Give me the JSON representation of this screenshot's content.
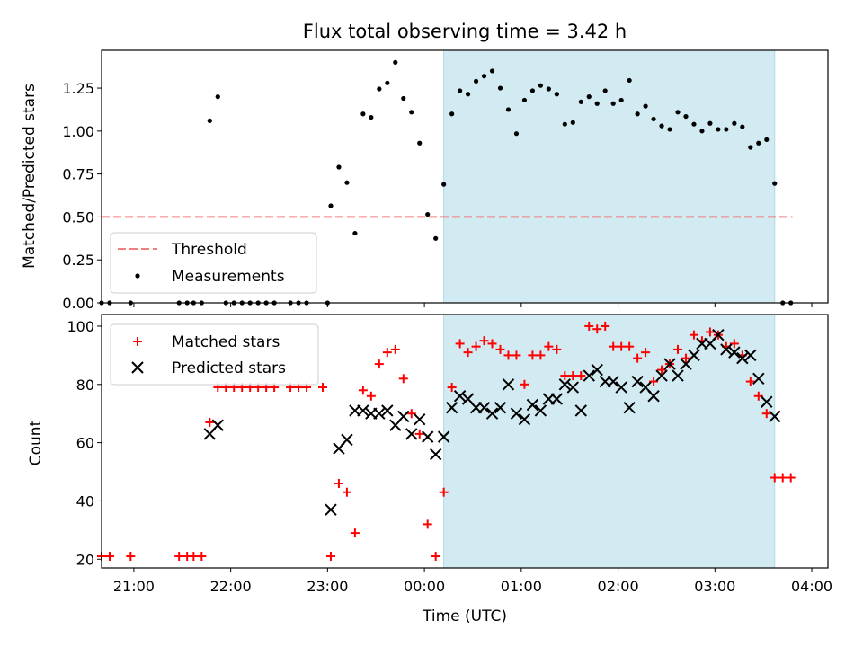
{
  "chart_data": [
    {
      "type": "scatter",
      "title": "Flux total observing time = 3.42 h",
      "ylabel": "Matched/Predicted stars",
      "ylim": [
        0,
        1.47
      ],
      "yticks": [
        0.0,
        0.25,
        0.5,
        0.75,
        1.0,
        1.25
      ],
      "ytick_labels": [
        "0.00",
        "0.25",
        "0.50",
        "0.75",
        "1.00",
        "1.25"
      ],
      "xlim": [
        "20:40",
        "04:10"
      ],
      "highlight_span": [
        "00:12",
        "03:37"
      ],
      "highlight_color": "#add8e6",
      "threshold": {
        "name": "Threshold",
        "value": 0.5,
        "x_range": [
          "20:40",
          "03:48"
        ],
        "color": "#f08080"
      },
      "legend": {
        "position": "lower-left",
        "entries": [
          "Threshold",
          "Measurements"
        ]
      },
      "series": [
        {
          "name": "Measurements",
          "color": "#000000",
          "points": [
            [
              "20:40",
              0
            ],
            [
              "20:45",
              0
            ],
            [
              "20:58",
              0
            ],
            [
              "21:28",
              0
            ],
            [
              "21:33",
              0
            ],
            [
              "21:37",
              0
            ],
            [
              "21:42",
              0
            ],
            [
              "21:47",
              1.06
            ],
            [
              "21:52",
              1.2
            ],
            [
              "21:57",
              0
            ],
            [
              "22:02",
              0
            ],
            [
              "22:07",
              0
            ],
            [
              "22:12",
              0
            ],
            [
              "22:17",
              0
            ],
            [
              "22:22",
              0
            ],
            [
              "22:27",
              0
            ],
            [
              "22:37",
              0
            ],
            [
              "22:42",
              0
            ],
            [
              "22:47",
              0
            ],
            [
              "23:00",
              0
            ],
            [
              "23:02",
              0.565
            ],
            [
              "23:07",
              0.79
            ],
            [
              "23:12",
              0.7
            ],
            [
              "23:17",
              0.405
            ],
            [
              "23:22",
              1.1
            ],
            [
              "23:27",
              1.08
            ],
            [
              "23:32",
              1.245
            ],
            [
              "23:37",
              1.28
            ],
            [
              "23:42",
              1.4
            ],
            [
              "23:47",
              1.19
            ],
            [
              "23:52",
              1.11
            ],
            [
              "23:57",
              0.93
            ],
            [
              "00:02",
              0.515
            ],
            [
              "00:07",
              0.375
            ],
            [
              "00:12",
              0.69
            ],
            [
              "00:17",
              1.1
            ],
            [
              "00:22",
              1.235
            ],
            [
              "00:27",
              1.215
            ],
            [
              "00:32",
              1.29
            ],
            [
              "00:37",
              1.32
            ],
            [
              "00:42",
              1.35
            ],
            [
              "00:47",
              1.25
            ],
            [
              "00:52",
              1.125
            ],
            [
              "00:57",
              0.985
            ],
            [
              "01:02",
              1.18
            ],
            [
              "01:07",
              1.235
            ],
            [
              "01:12",
              1.265
            ],
            [
              "01:17",
              1.245
            ],
            [
              "01:22",
              1.215
            ],
            [
              "01:27",
              1.04
            ],
            [
              "01:32",
              1.05
            ],
            [
              "01:37",
              1.17
            ],
            [
              "01:42",
              1.2
            ],
            [
              "01:47",
              1.16
            ],
            [
              "01:52",
              1.235
            ],
            [
              "01:57",
              1.16
            ],
            [
              "02:02",
              1.18
            ],
            [
              "02:07",
              1.295
            ],
            [
              "02:12",
              1.1
            ],
            [
              "02:17",
              1.145
            ],
            [
              "02:22",
              1.07
            ],
            [
              "02:27",
              1.03
            ],
            [
              "02:32",
              1.01
            ],
            [
              "02:37",
              1.11
            ],
            [
              "02:42",
              1.085
            ],
            [
              "02:47",
              1.04
            ],
            [
              "02:52",
              1.0
            ],
            [
              "02:57",
              1.045
            ],
            [
              "03:02",
              1.01
            ],
            [
              "03:07",
              1.01
            ],
            [
              "03:12",
              1.045
            ],
            [
              "03:17",
              1.025
            ],
            [
              "03:22",
              0.905
            ],
            [
              "03:27",
              0.93
            ],
            [
              "03:32",
              0.95
            ],
            [
              "03:37",
              0.695
            ],
            [
              "03:42",
              0
            ],
            [
              "03:47",
              0
            ]
          ]
        }
      ]
    },
    {
      "type": "scatter",
      "xlabel": "Time (UTC)",
      "ylabel": "Count",
      "ylim": [
        17,
        104
      ],
      "yticks": [
        20,
        40,
        60,
        80,
        100
      ],
      "ytick_labels": [
        "20",
        "40",
        "60",
        "80",
        "100"
      ],
      "xlim": [
        "20:40",
        "04:10"
      ],
      "xticks": [
        "21:00",
        "22:00",
        "23:00",
        "00:00",
        "01:00",
        "02:00",
        "03:00",
        "04:00"
      ],
      "highlight_span": [
        "00:12",
        "03:37"
      ],
      "highlight_color": "#add8e6",
      "legend": {
        "position": "top-left",
        "entries": [
          "Matched stars",
          "Predicted stars"
        ]
      },
      "series": [
        {
          "name": "Matched stars",
          "marker": "plus",
          "color": "#ff0000",
          "points": [
            [
              "20:40",
              21
            ],
            [
              "20:45",
              21
            ],
            [
              "20:58",
              21
            ],
            [
              "21:28",
              21
            ],
            [
              "21:33",
              21
            ],
            [
              "21:37",
              21
            ],
            [
              "21:42",
              21
            ],
            [
              "21:47",
              67
            ],
            [
              "21:52",
              79
            ],
            [
              "21:57",
              79
            ],
            [
              "22:02",
              79
            ],
            [
              "22:07",
              79
            ],
            [
              "22:12",
              79
            ],
            [
              "22:17",
              79
            ],
            [
              "22:22",
              79
            ],
            [
              "22:27",
              79
            ],
            [
              "22:37",
              79
            ],
            [
              "22:42",
              79
            ],
            [
              "22:47",
              79
            ],
            [
              "22:57",
              79
            ],
            [
              "23:02",
              21
            ],
            [
              "23:07",
              46
            ],
            [
              "23:12",
              43
            ],
            [
              "23:17",
              29
            ],
            [
              "23:22",
              78
            ],
            [
              "23:27",
              76
            ],
            [
              "23:32",
              87
            ],
            [
              "23:37",
              91
            ],
            [
              "23:42",
              92
            ],
            [
              "23:47",
              82
            ],
            [
              "23:52",
              70
            ],
            [
              "23:57",
              63
            ],
            [
              "00:02",
              32
            ],
            [
              "00:07",
              21
            ],
            [
              "00:12",
              43
            ],
            [
              "00:17",
              79
            ],
            [
              "00:22",
              94
            ],
            [
              "00:27",
              91
            ],
            [
              "00:32",
              93
            ],
            [
              "00:37",
              95
            ],
            [
              "00:42",
              94
            ],
            [
              "00:47",
              92
            ],
            [
              "00:52",
              90
            ],
            [
              "00:57",
              90
            ],
            [
              "01:02",
              80
            ],
            [
              "01:07",
              90
            ],
            [
              "01:12",
              90
            ],
            [
              "01:17",
              93
            ],
            [
              "01:22",
              92
            ],
            [
              "01:27",
              83
            ],
            [
              "01:32",
              83
            ],
            [
              "01:37",
              83
            ],
            [
              "01:42",
              100
            ],
            [
              "01:47",
              99
            ],
            [
              "01:52",
              100
            ],
            [
              "01:57",
              93
            ],
            [
              "02:02",
              93
            ],
            [
              "02:07",
              93
            ],
            [
              "02:12",
              89
            ],
            [
              "02:17",
              91
            ],
            [
              "02:22",
              81
            ],
            [
              "02:27",
              85
            ],
            [
              "02:32",
              87
            ],
            [
              "02:37",
              92
            ],
            [
              "02:42",
              89
            ],
            [
              "02:47",
              97
            ],
            [
              "02:52",
              95
            ],
            [
              "02:57",
              98
            ],
            [
              "03:02",
              97
            ],
            [
              "03:07",
              93
            ],
            [
              "03:12",
              94
            ],
            [
              "03:17",
              90
            ],
            [
              "03:22",
              81
            ],
            [
              "03:27",
              76
            ],
            [
              "03:32",
              70
            ],
            [
              "03:37",
              48
            ],
            [
              "03:42",
              48
            ],
            [
              "03:47",
              48
            ]
          ]
        },
        {
          "name": "Predicted stars",
          "marker": "x",
          "color": "#000000",
          "points": [
            [
              "21:47",
              63
            ],
            [
              "21:52",
              66
            ],
            [
              "23:02",
              37
            ],
            [
              "23:07",
              58
            ],
            [
              "23:12",
              61
            ],
            [
              "23:17",
              71
            ],
            [
              "23:22",
              71
            ],
            [
              "23:27",
              70
            ],
            [
              "23:32",
              70
            ],
            [
              "23:37",
              71
            ],
            [
              "23:42",
              66
            ],
            [
              "23:47",
              69
            ],
            [
              "23:52",
              63
            ],
            [
              "23:57",
              68
            ],
            [
              "00:02",
              62
            ],
            [
              "00:07",
              56
            ],
            [
              "00:12",
              62
            ],
            [
              "00:17",
              72
            ],
            [
              "00:22",
              76
            ],
            [
              "00:27",
              75
            ],
            [
              "00:32",
              72
            ],
            [
              "00:37",
              72
            ],
            [
              "00:42",
              70
            ],
            [
              "00:47",
              72
            ],
            [
              "00:52",
              80
            ],
            [
              "00:57",
              70
            ],
            [
              "01:02",
              68
            ],
            [
              "01:07",
              73
            ],
            [
              "01:12",
              71
            ],
            [
              "01:17",
              75
            ],
            [
              "01:22",
              75
            ],
            [
              "01:27",
              80
            ],
            [
              "01:32",
              79
            ],
            [
              "01:37",
              71
            ],
            [
              "01:42",
              83
            ],
            [
              "01:47",
              85
            ],
            [
              "01:52",
              81
            ],
            [
              "01:57",
              81
            ],
            [
              "02:02",
              79
            ],
            [
              "02:07",
              72
            ],
            [
              "02:12",
              81
            ],
            [
              "02:17",
              79
            ],
            [
              "02:22",
              76
            ],
            [
              "02:27",
              83
            ],
            [
              "02:32",
              87
            ],
            [
              "02:37",
              83
            ],
            [
              "02:42",
              87
            ],
            [
              "02:47",
              90
            ],
            [
              "02:52",
              94
            ],
            [
              "02:57",
              94
            ],
            [
              "03:02",
              97
            ],
            [
              "03:07",
              92
            ],
            [
              "03:12",
              91
            ],
            [
              "03:17",
              89
            ],
            [
              "03:22",
              90
            ],
            [
              "03:27",
              82
            ],
            [
              "03:32",
              74
            ],
            [
              "03:37",
              69
            ]
          ]
        }
      ]
    }
  ]
}
